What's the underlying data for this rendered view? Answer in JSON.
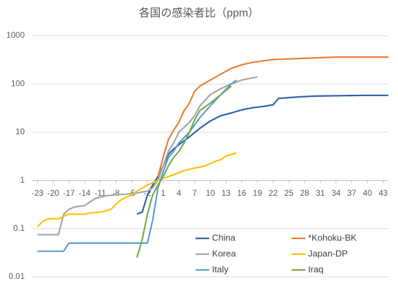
{
  "chart_data": {
    "type": "line",
    "title": "各国の感染者比（ppm）",
    "xlim": [
      -24,
      44
    ],
    "xticks": [
      -23,
      -20,
      -17,
      -14,
      -11,
      -8,
      -5,
      -2,
      1,
      4,
      7,
      10,
      13,
      16,
      19,
      22,
      25,
      28,
      31,
      34,
      37,
      40,
      43
    ],
    "ylim": [
      0.01,
      1000
    ],
    "yticks": [
      0.01,
      0.1,
      1,
      10,
      100,
      1000
    ],
    "y_log_scale": true,
    "grid": true,
    "x_axis_crosses_at": 1,
    "legend": "lower-right",
    "series": [
      {
        "name": "China",
        "color": "#2f5fa7",
        "x": [
          -4,
          -3,
          -2,
          -1,
          0,
          1,
          2,
          3,
          4,
          6,
          8,
          10,
          12,
          14,
          16,
          18,
          20,
          22,
          23,
          25,
          27,
          30,
          35,
          40,
          44
        ],
        "values": [
          0.2,
          0.22,
          0.5,
          0.8,
          1.2,
          2,
          3.5,
          4.5,
          5.5,
          8,
          12,
          17,
          22,
          25,
          29,
          32,
          34,
          37,
          50,
          52,
          54,
          56,
          57,
          58,
          58
        ]
      },
      {
        "name": "*Kohoku-BK",
        "color": "#ed7d31",
        "x": [
          0,
          1,
          2,
          3,
          4,
          5,
          6,
          7,
          8,
          10,
          12,
          14,
          16,
          18,
          20,
          22,
          25,
          28,
          31,
          34,
          40,
          44
        ],
        "values": [
          1.2,
          3,
          7,
          11,
          16,
          28,
          40,
          70,
          90,
          120,
          160,
          210,
          250,
          280,
          300,
          320,
          330,
          340,
          350,
          360,
          360,
          360
        ]
      },
      {
        "name": "Korea",
        "color": "#a5a5a5",
        "x": [
          -23,
          -19,
          -18,
          -17,
          -16,
          -14,
          -12,
          -10,
          -8,
          -6,
          -4,
          -2,
          -1,
          0,
          1,
          2,
          3,
          4,
          6,
          7,
          8,
          10,
          12,
          14,
          16,
          19
        ],
        "values": [
          0.075,
          0.075,
          0.2,
          0.25,
          0.28,
          0.3,
          0.42,
          0.48,
          0.5,
          0.52,
          0.55,
          0.6,
          0.7,
          1.0,
          2,
          4,
          6,
          10,
          16,
          22,
          35,
          60,
          80,
          100,
          120,
          140
        ]
      },
      {
        "name": "Japan-DP",
        "color": "#ffc000",
        "x": [
          -23,
          -22,
          -21,
          -19,
          -18,
          -17,
          -14,
          -13,
          -11,
          -9,
          -8,
          -7,
          -6,
          -5,
          -4,
          -2,
          0,
          1,
          2,
          3,
          5,
          7,
          9,
          11,
          12,
          13,
          15
        ],
        "values": [
          0.11,
          0.14,
          0.16,
          0.16,
          0.18,
          0.2,
          0.2,
          0.21,
          0.22,
          0.25,
          0.32,
          0.4,
          0.45,
          0.5,
          0.6,
          0.8,
          1.0,
          1.1,
          1.2,
          1.3,
          1.6,
          1.8,
          2.0,
          2.5,
          2.7,
          3.2,
          3.7
        ]
      },
      {
        "name": "Italy",
        "color": "#5b9bd5",
        "x": [
          -23,
          -18,
          -17,
          -2,
          -1,
          0,
          1,
          2,
          3,
          4,
          6,
          8,
          10,
          12,
          14,
          15
        ],
        "values": [
          0.034,
          0.034,
          0.05,
          0.05,
          0.15,
          0.7,
          1.5,
          3,
          4,
          6,
          10,
          20,
          35,
          60,
          100,
          120
        ]
      },
      {
        "name": "Iraq",
        "color": "#70ad47",
        "x": [
          -4,
          -3,
          -2,
          -1,
          0,
          1,
          2,
          3,
          4,
          5,
          6,
          7,
          8,
          10,
          12,
          14
        ],
        "values": [
          0.025,
          0.06,
          0.2,
          0.5,
          0.8,
          1.2,
          2,
          3,
          4,
          6,
          10,
          18,
          28,
          40,
          60,
          90
        ]
      }
    ]
  }
}
